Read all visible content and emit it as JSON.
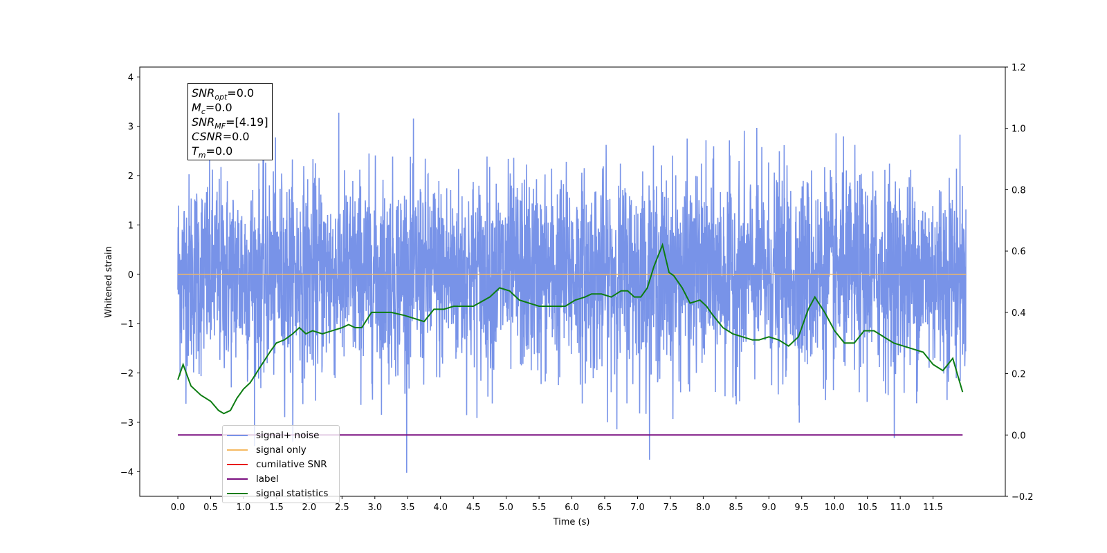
{
  "chart_data": {
    "type": "line",
    "xlabel": "Time (s)",
    "ylabel": "Whitened strain",
    "x_ticks": [
      "0.0",
      "0.5",
      "1.0",
      "1.5",
      "2.0",
      "2.5",
      "3.0",
      "3.5",
      "4.0",
      "4.5",
      "5.0",
      "5.5",
      "6.0",
      "6.5",
      "7.0",
      "7.5",
      "8.0",
      "8.5",
      "9.0",
      "9.5",
      "10.0",
      "10.5",
      "11.0",
      "11.5"
    ],
    "xlim": [
      -0.58,
      12.6
    ],
    "ylim": [
      -4.5,
      4.2
    ],
    "y_ticks": [
      -4,
      -3,
      -2,
      -1,
      0,
      1,
      2,
      3,
      4
    ],
    "y2lim": [
      -0.2,
      1.2
    ],
    "y2_ticks": [
      "−0.2",
      "0.0",
      "0.2",
      "0.4",
      "0.6",
      "0.8",
      "1.0",
      "1.2"
    ],
    "y2_tick_values": [
      -0.2,
      0.0,
      0.2,
      0.4,
      0.6,
      0.8,
      1.0,
      1.2
    ],
    "info_box": {
      "snr_opt": "=0.0",
      "mc": "=0.0",
      "snr_mf": "=[4.19]",
      "csnr": "=0.0",
      "tm": "=0.0"
    },
    "series": [
      {
        "name": "signal+ noise",
        "color": "#7893e8",
        "axis": "left",
        "description_range": [
          0.0,
          12.0
        ],
        "envelope_typical": [
          -1.8,
          2.3
        ],
        "extremes": {
          "max": 3.7,
          "min": -4.1
        }
      },
      {
        "name": "signal only",
        "color": "#f5b961",
        "axis": "left",
        "x": [
          0.0,
          12.0
        ],
        "y": [
          0.0,
          0.0
        ]
      },
      {
        "name": "cumilative SNR",
        "color": "#e8120c",
        "axis": "left"
      },
      {
        "name": "label",
        "color": "#7a0f80",
        "axis": "right",
        "x": [
          0.0,
          11.95
        ],
        "y": [
          0.0,
          0.0
        ]
      },
      {
        "name": "signal statistics",
        "color": "#0d7d12",
        "axis": "right",
        "x": [
          0.0,
          0.08,
          0.2,
          0.35,
          0.5,
          0.62,
          0.7,
          0.8,
          0.9,
          1.0,
          1.1,
          1.25,
          1.4,
          1.5,
          1.62,
          1.75,
          1.85,
          1.95,
          2.05,
          2.2,
          2.35,
          2.5,
          2.6,
          2.7,
          2.8,
          2.95,
          3.05,
          3.25,
          3.45,
          3.6,
          3.75,
          3.9,
          4.05,
          4.2,
          4.3,
          4.5,
          4.75,
          4.9,
          5.05,
          5.2,
          5.35,
          5.5,
          5.6,
          5.75,
          5.9,
          6.05,
          6.2,
          6.3,
          6.45,
          6.6,
          6.75,
          6.85,
          6.95,
          7.05,
          7.15,
          7.25,
          7.38,
          7.48,
          7.55,
          7.68,
          7.8,
          7.95,
          8.05,
          8.15,
          8.3,
          8.45,
          8.6,
          8.75,
          8.85,
          9.0,
          9.15,
          9.3,
          9.45,
          9.6,
          9.7,
          9.85,
          10.0,
          10.15,
          10.3,
          10.45,
          10.6,
          10.75,
          10.9,
          11.05,
          11.2,
          11.35,
          11.5,
          11.65,
          11.8,
          11.95
        ],
        "y": [
          0.18,
          0.23,
          0.16,
          0.13,
          0.11,
          0.08,
          0.07,
          0.08,
          0.12,
          0.15,
          0.17,
          0.22,
          0.27,
          0.3,
          0.31,
          0.33,
          0.35,
          0.33,
          0.34,
          0.33,
          0.34,
          0.35,
          0.36,
          0.35,
          0.35,
          0.4,
          0.4,
          0.4,
          0.39,
          0.38,
          0.37,
          0.41,
          0.41,
          0.42,
          0.42,
          0.42,
          0.45,
          0.48,
          0.47,
          0.44,
          0.43,
          0.42,
          0.42,
          0.42,
          0.42,
          0.44,
          0.45,
          0.46,
          0.46,
          0.45,
          0.47,
          0.47,
          0.45,
          0.45,
          0.48,
          0.55,
          0.62,
          0.53,
          0.52,
          0.48,
          0.43,
          0.44,
          0.42,
          0.39,
          0.35,
          0.33,
          0.32,
          0.31,
          0.31,
          0.32,
          0.31,
          0.29,
          0.32,
          0.41,
          0.45,
          0.4,
          0.34,
          0.3,
          0.3,
          0.34,
          0.34,
          0.32,
          0.3,
          0.29,
          0.28,
          0.27,
          0.23,
          0.21,
          0.25,
          0.14
        ]
      }
    ]
  }
}
